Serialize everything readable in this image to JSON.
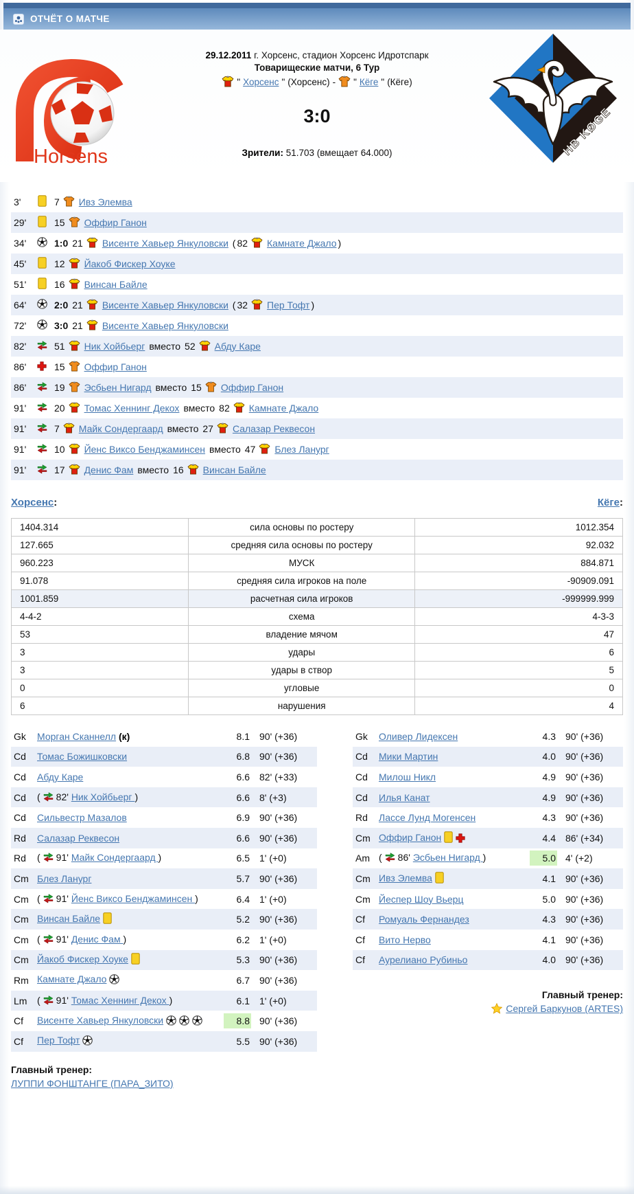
{
  "header": {
    "title": "ОТЧЁТ О МАТЧЕ"
  },
  "labels": {
    "colon": ":",
    "substitute_word": "вместо",
    "quote": "\"",
    "separator": "-"
  },
  "match": {
    "date": "29.12.2011",
    "venue": " г. Хорсенс, стадион Хорсенс Идротспарк",
    "competition": "Товарищеские матчи, 6 Тур",
    "home_name": "Хорсенс",
    "home_manager": "(Хорсенс)",
    "away_name": "Кёге",
    "away_manager": "(Кёге)",
    "score": "3:0",
    "attendance_label": "Зрители:",
    "attendance_value": "51.703 (вмещает 64.000)",
    "home_logo_text": "Horsens",
    "away_logo_text": "HB KØGE"
  },
  "icons": {
    "goal": "soccer-ball-icon",
    "yellow": "yellow-card-icon",
    "sub": "substitution-arrows-icon",
    "injury": "red-cross-icon",
    "shirt_home": "home-shirt-icon",
    "shirt_away": "away-shirt-icon",
    "star": "star-icon",
    "crest": "report-crest-icon"
  },
  "events": [
    {
      "minute": "3'",
      "type": "yellow",
      "player": {
        "num": "7",
        "shirt": "away",
        "name": "Ивз Элемва"
      }
    },
    {
      "minute": "29'",
      "type": "yellow",
      "player": {
        "num": "15",
        "shirt": "away",
        "name": "Оффир Ганон"
      }
    },
    {
      "minute": "34'",
      "type": "goal",
      "score": "1:0",
      "player": {
        "num": "21",
        "shirt": "home",
        "name": "Висенте Хавьер Янкуловски"
      },
      "assist": {
        "num": "82",
        "shirt": "home",
        "name": "Камнате Джало"
      }
    },
    {
      "minute": "45'",
      "type": "yellow",
      "player": {
        "num": "12",
        "shirt": "home",
        "name": "Йакоб Фискер Хоуке"
      }
    },
    {
      "minute": "51'",
      "type": "yellow",
      "player": {
        "num": "16",
        "shirt": "home",
        "name": "Винсан Байле"
      }
    },
    {
      "minute": "64'",
      "type": "goal",
      "score": "2:0",
      "player": {
        "num": "21",
        "shirt": "home",
        "name": "Висенте Хавьер Янкуловски"
      },
      "assist": {
        "num": "32",
        "shirt": "home",
        "name": "Пер Тофт"
      }
    },
    {
      "minute": "72'",
      "type": "goal",
      "score": "3:0",
      "player": {
        "num": "21",
        "shirt": "home",
        "name": "Висенте Хавьер Янкуловски"
      }
    },
    {
      "minute": "82'",
      "type": "sub",
      "pin": {
        "num": "51",
        "shirt": "home",
        "name": "Ник Хойбьерг"
      },
      "pout": {
        "num": "52",
        "shirt": "home",
        "name": "Абду Каре"
      }
    },
    {
      "minute": "86'",
      "type": "injury",
      "player": {
        "num": "15",
        "shirt": "away",
        "name": "Оффир Ганон"
      }
    },
    {
      "minute": "86'",
      "type": "sub",
      "pin": {
        "num": "19",
        "shirt": "away",
        "name": "Эсбьен Нигард"
      },
      "pout": {
        "num": "15",
        "shirt": "away",
        "name": "Оффир Ганон"
      }
    },
    {
      "minute": "91'",
      "type": "sub",
      "pin": {
        "num": "20",
        "shirt": "home",
        "name": "Томас Хеннинг Декох"
      },
      "pout": {
        "num": "82",
        "shirt": "home",
        "name": "Камнате Джало"
      }
    },
    {
      "minute": "91'",
      "type": "sub",
      "pin": {
        "num": "7",
        "shirt": "home",
        "name": "Майк Сондергаард"
      },
      "pout": {
        "num": "27",
        "shirt": "home",
        "name": "Салазар Реквесон"
      }
    },
    {
      "minute": "91'",
      "type": "sub",
      "pin": {
        "num": "10",
        "shirt": "home",
        "name": "Йенс Виксо Бенджаминсен"
      },
      "pout": {
        "num": "47",
        "shirt": "home",
        "name": "Блез Ланург"
      }
    },
    {
      "minute": "91'",
      "type": "sub",
      "pin": {
        "num": "17",
        "shirt": "home",
        "name": "Денис Фам"
      },
      "pout": {
        "num": "16",
        "shirt": "home",
        "name": "Винсан Байле"
      }
    }
  ],
  "sections": {
    "home_link": "Хорсенс",
    "away_link": "Кёге"
  },
  "stats": {
    "rows": [
      {
        "home": "1404.314",
        "label": "сила основы по ростеру",
        "away": "1012.354",
        "highlight": false
      },
      {
        "home": "127.665",
        "label": "средняя сила основы по ростеру",
        "away": "92.032",
        "highlight": false
      },
      {
        "home": "960.223",
        "label": "МУСК",
        "away": "884.871",
        "highlight": false
      },
      {
        "home": "91.078",
        "label": "средняя сила игроков на поле",
        "away": "-90909.091",
        "highlight": false
      },
      {
        "home": "1001.859",
        "label": "расчетная сила игроков",
        "away": "-999999.999",
        "highlight": true
      },
      {
        "home": "4-4-2",
        "label": "схема",
        "away": "4-3-3",
        "highlight": false
      },
      {
        "home": "53",
        "label": "владение мячом",
        "away": "47",
        "highlight": false
      },
      {
        "home": "3",
        "label": "удары",
        "away": "6",
        "highlight": false
      },
      {
        "home": "3",
        "label": "удары в створ",
        "away": "5",
        "highlight": false
      },
      {
        "home": "0",
        "label": "угловые",
        "away": "0",
        "highlight": false
      },
      {
        "home": "6",
        "label": "нарушения",
        "away": "4",
        "highlight": false
      }
    ]
  },
  "lineups": {
    "home": {
      "players": [
        {
          "pos": "Gk",
          "name": "Морган Сканнелл",
          "captain": "(к)",
          "rating": "8.1",
          "time": "90' (+36)"
        },
        {
          "pos": "Cd",
          "name": "Томас Божишковски",
          "rating": "6.8",
          "time": "90' (+36)"
        },
        {
          "pos": "Cd",
          "name": "Абду Каре",
          "rating": "6.6",
          "time": "82' (+33)"
        },
        {
          "pos": "Cd",
          "sub": "82'",
          "name": "Ник Хойбьерг",
          "rating": "6.6",
          "time": "8' (+3)"
        },
        {
          "pos": "Cd",
          "name": "Сильвестр Мазалов",
          "rating": "6.9",
          "time": "90' (+36)"
        },
        {
          "pos": "Rd",
          "name": "Салазар Реквесон",
          "rating": "6.6",
          "time": "90' (+36)"
        },
        {
          "pos": "Rd",
          "sub": "91'",
          "name": "Майк Сондергаард",
          "rating": "6.5",
          "time": "1' (+0)"
        },
        {
          "pos": "Cm",
          "name": "Блез Ланург",
          "rating": "5.7",
          "time": "90' (+36)"
        },
        {
          "pos": "Cm",
          "sub": "91'",
          "name": "Йенс Виксо Бенджаминсен",
          "rating": "6.4",
          "time": "1' (+0)"
        },
        {
          "pos": "Cm",
          "name": "Винсан Байле",
          "icons": [
            "yellow"
          ],
          "rating": "5.2",
          "time": "90' (+36)"
        },
        {
          "pos": "Cm",
          "sub": "91'",
          "name": "Денис Фам",
          "rating": "6.2",
          "time": "1' (+0)"
        },
        {
          "pos": "Cm",
          "name": "Йакоб Фискер Хоуке",
          "icons": [
            "yellow"
          ],
          "rating": "5.3",
          "time": "90' (+36)"
        },
        {
          "pos": "Rm",
          "name": "Камнате Джало",
          "icons": [
            "goal"
          ],
          "rating": "6.7",
          "time": "90' (+36)"
        },
        {
          "pos": "Lm",
          "sub": "91'",
          "name": "Томас Хеннинг Декох",
          "rating": "6.1",
          "time": "1' (+0)"
        },
        {
          "pos": "Cf",
          "name": "Висенте Хавьер Янкуловски",
          "icons": [
            "goal",
            "goal",
            "goal"
          ],
          "rating": "8.8",
          "green": true,
          "time": "90' (+36)"
        },
        {
          "pos": "Cf",
          "name": "Пер Тофт",
          "icons": [
            "goal"
          ],
          "rating": "5.5",
          "time": "90' (+36)"
        }
      ],
      "coach_label": "Главный тренер:",
      "coach_name": "ЛУППИ ФОНШТАНГЕ (ПАРА_ЗИТО)"
    },
    "away": {
      "players": [
        {
          "pos": "Gk",
          "name": "Оливер Лидексен",
          "rating": "4.3",
          "time": "90' (+36)"
        },
        {
          "pos": "Cd",
          "name": "Мики Мартин",
          "rating": "4.0",
          "time": "90' (+36)"
        },
        {
          "pos": "Cd",
          "name": "Милош Никл",
          "rating": "4.9",
          "time": "90' (+36)"
        },
        {
          "pos": "Cd",
          "name": "Илья Канат",
          "rating": "4.9",
          "time": "90' (+36)"
        },
        {
          "pos": "Rd",
          "name": "Лассе Лунд Могенсен",
          "rating": "4.3",
          "time": "90' (+36)"
        },
        {
          "pos": "Cm",
          "name": "Оффир Ганон",
          "icons": [
            "yellow",
            "injury"
          ],
          "rating": "4.4",
          "time": "86' (+34)"
        },
        {
          "pos": "Am",
          "sub": "86'",
          "name": "Эсбьен Нигард",
          "rating": "5.0",
          "green": true,
          "time": "4' (+2)"
        },
        {
          "pos": "Cm",
          "name": "Ивз Элемва",
          "icons": [
            "yellow"
          ],
          "rating": "4.1",
          "time": "90' (+36)"
        },
        {
          "pos": "Cm",
          "name": "Йеспер Шоу Вьерц",
          "rating": "5.0",
          "time": "90' (+36)"
        },
        {
          "pos": "Cf",
          "name": "Ромуаль Фернандез",
          "rating": "4.3",
          "time": "90' (+36)"
        },
        {
          "pos": "Cf",
          "name": "Вито Нерво",
          "rating": "4.1",
          "time": "90' (+36)"
        },
        {
          "pos": "Cf",
          "name": "Аурелиано Рубиньо",
          "rating": "4.0",
          "time": "90' (+36)"
        }
      ],
      "coach_label": "Главный тренер:",
      "coach_name": "Сергей Баркунов (ARTES)"
    }
  }
}
